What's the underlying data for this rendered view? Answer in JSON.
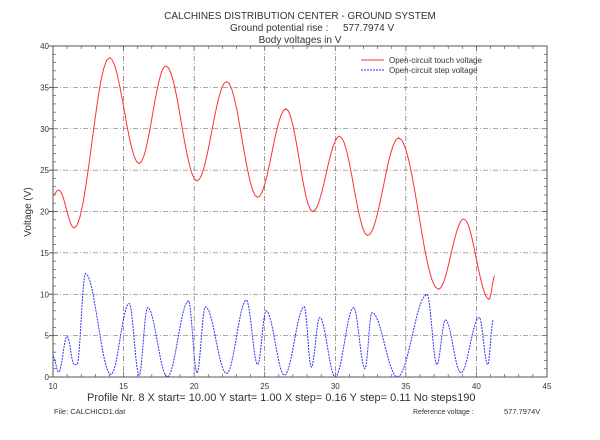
{
  "chart_data": {
    "type": "line",
    "title": "CALCHINES DISTRIBUTION CENTER - GROUND SYSTEM",
    "subtitle_label": "Ground potential rise :",
    "subtitle_value": "577.7974  V",
    "subtitle2": "Body voltages in V",
    "xlabel": "",
    "ylabel": "Voltage (V)",
    "xlim": [
      10,
      45
    ],
    "ylim": [
      0,
      40
    ],
    "xticks": [
      10,
      15,
      20,
      25,
      30,
      35,
      40,
      45
    ],
    "yticks": [
      0,
      5,
      10,
      15,
      20,
      25,
      30,
      35,
      40
    ],
    "grid": true,
    "legend_position": "top-right",
    "series": [
      {
        "name": "Open-circuit touch voltage",
        "color": "#ff3030",
        "style": "solid",
        "x": [
          10.0,
          10.4,
          11.5,
          14.0,
          16.1,
          18.0,
          20.2,
          22.3,
          24.5,
          26.5,
          28.4,
          30.3,
          32.3,
          34.5,
          37.3,
          39.1,
          40.9,
          41.3
        ],
        "y": [
          22.0,
          22.6,
          18.0,
          38.6,
          25.8,
          37.6,
          23.7,
          35.7,
          21.7,
          32.4,
          20.0,
          29.1,
          17.1,
          28.9,
          10.6,
          19.1,
          9.4,
          12.2
        ]
      },
      {
        "name": "Open-circuit step voltage",
        "color": "#3030ff",
        "style": "dashed",
        "x": [
          10.0,
          10.4,
          11.0,
          11.5,
          11.7,
          12.3,
          14.1,
          15.4,
          16.1,
          16.7,
          18.1,
          19.6,
          20.2,
          20.8,
          22.3,
          23.7,
          24.5,
          25.1,
          26.4,
          27.8,
          28.3,
          28.9,
          30.0,
          31.3,
          32.1,
          32.6,
          34.4,
          36.5,
          37.2,
          37.8,
          38.9,
          40.2,
          40.8,
          41.2
        ],
        "y": [
          2.5,
          0.6,
          4.9,
          1.5,
          1.5,
          12.5,
          0.3,
          8.9,
          0.2,
          8.4,
          0.0,
          9.2,
          0.5,
          8.5,
          0.4,
          9.3,
          1.5,
          8.0,
          0.2,
          8.5,
          1.2,
          7.2,
          0.0,
          8.4,
          1.0,
          7.8,
          0.0,
          10.0,
          1.5,
          6.9,
          0.5,
          7.2,
          1.5,
          6.9
        ]
      }
    ]
  },
  "footer": {
    "profile": "Profile Nr.   8 X start= 10.00  Y start=   1.00  X step=   0.16  Y step=   0.11 No steps190",
    "file": "File: CALCHICD1.dat",
    "reference_label": "Reference voltage :",
    "reference_value": "577.7974V"
  }
}
